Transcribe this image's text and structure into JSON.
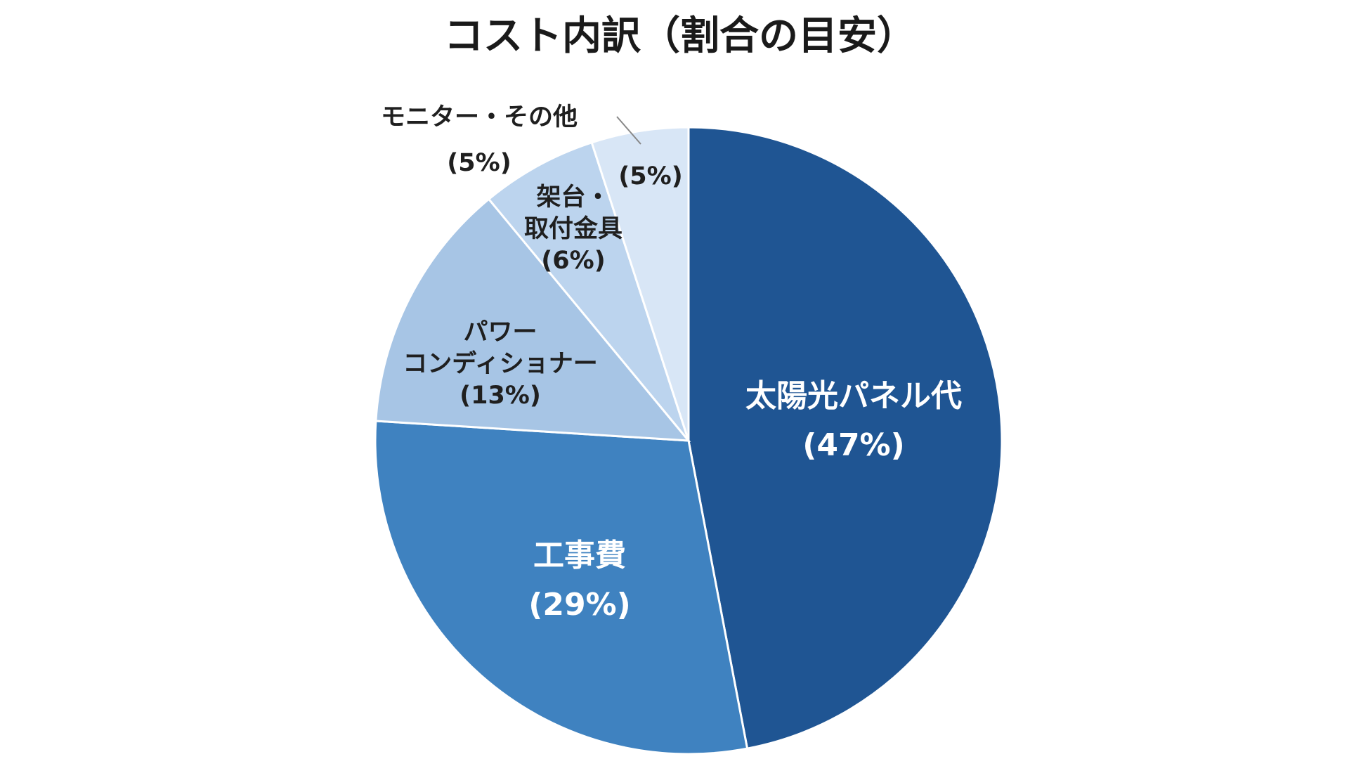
{
  "chart_data": {
    "type": "pie",
    "title": "コスト内訳（割合の目安）",
    "start": "12 o'clock",
    "direction": "clockwise",
    "slices": [
      {
        "name": "太陽光パネル代",
        "value": 47,
        "value_label": "(47%)",
        "color": "#1f5593"
      },
      {
        "name": "工事費",
        "value": 29,
        "value_label": "(29%)",
        "color": "#3f82c0"
      },
      {
        "name": "パワーコンディショナー",
        "value": 13,
        "value_label": "(13%)",
        "color": "#a7c5e5"
      },
      {
        "name": "架台・取付金具",
        "value": 6,
        "value_label": "(6%)",
        "color": "#bcd4ee"
      },
      {
        "name": "モニター・その他",
        "value": 5,
        "value_label": "(5%)",
        "color": "#d8e6f6"
      }
    ],
    "callout": {
      "label_lines": [
        "モニター・その他",
        "(5%)"
      ],
      "value_label": "(5%)"
    }
  }
}
